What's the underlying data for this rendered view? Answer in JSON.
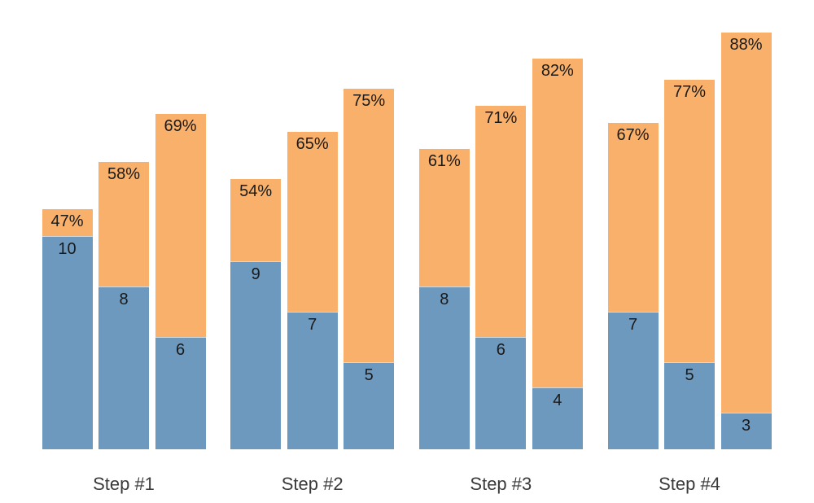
{
  "chart_data": {
    "type": "bar",
    "subtype": "grouped-overlay",
    "title": "",
    "xlabel": "",
    "ylabel": "",
    "grid": false,
    "legend": false,
    "axes_visible": false,
    "background": "#FFFFFF",
    "bar_label_color": "#1A1A1A",
    "category_label_color": "#3A3A3A",
    "categories": [
      "Step #1",
      "Step #2",
      "Step #3",
      "Step #4"
    ],
    "series": [
      {
        "name": "blue-count",
        "role": "inner-bar",
        "color": "#6D99BE",
        "values": [
          [
            10,
            8,
            6
          ],
          [
            9,
            7,
            5
          ],
          [
            8,
            6,
            4
          ],
          [
            7,
            5,
            3
          ]
        ],
        "labels": [
          [
            "10",
            "8",
            "6"
          ],
          [
            "9",
            "7",
            "5"
          ],
          [
            "8",
            "6",
            "4"
          ],
          [
            "7",
            "5",
            "3"
          ]
        ]
      },
      {
        "name": "orange-percent",
        "role": "outer-bar",
        "color": "#F8B06A",
        "values": [
          [
            47,
            58,
            69
          ],
          [
            54,
            65,
            75
          ],
          [
            61,
            71,
            82
          ],
          [
            67,
            77,
            88
          ]
        ],
        "labels": [
          [
            "47%",
            "58%",
            "69%"
          ],
          [
            "54%",
            "65%",
            "75%"
          ],
          [
            "61%",
            "71%",
            "82%"
          ],
          [
            "67%",
            "77%",
            "88%"
          ]
        ]
      }
    ]
  }
}
